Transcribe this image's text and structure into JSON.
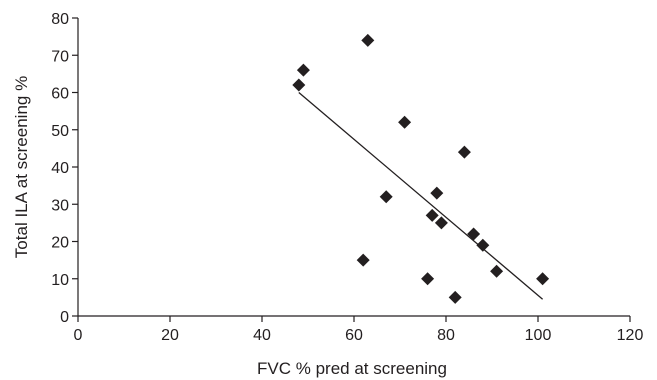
{
  "chart_data": {
    "type": "scatter",
    "title": "",
    "xlabel": "FVC % pred at screening",
    "ylabel": "Total ILA at screening %",
    "xlim": [
      0,
      120
    ],
    "ylim": [
      0,
      80
    ],
    "x_ticks": [
      0,
      20,
      40,
      60,
      80,
      100,
      120
    ],
    "y_ticks": [
      0,
      10,
      20,
      30,
      40,
      50,
      60,
      70,
      80
    ],
    "grid": false,
    "legend": "none",
    "marker": "diamond",
    "color": "#231f20",
    "points": [
      {
        "x": 48,
        "y": 62
      },
      {
        "x": 49,
        "y": 66
      },
      {
        "x": 62,
        "y": 15
      },
      {
        "x": 63,
        "y": 74
      },
      {
        "x": 67,
        "y": 32
      },
      {
        "x": 71,
        "y": 52
      },
      {
        "x": 76,
        "y": 10
      },
      {
        "x": 77,
        "y": 27
      },
      {
        "x": 78,
        "y": 33
      },
      {
        "x": 79,
        "y": 25
      },
      {
        "x": 82,
        "y": 5
      },
      {
        "x": 84,
        "y": 44
      },
      {
        "x": 86,
        "y": 22
      },
      {
        "x": 88,
        "y": 19
      },
      {
        "x": 91,
        "y": 12
      },
      {
        "x": 101,
        "y": 10
      }
    ],
    "trendline": {
      "x": [
        48,
        101
      ],
      "y": [
        60,
        4.5
      ]
    }
  }
}
